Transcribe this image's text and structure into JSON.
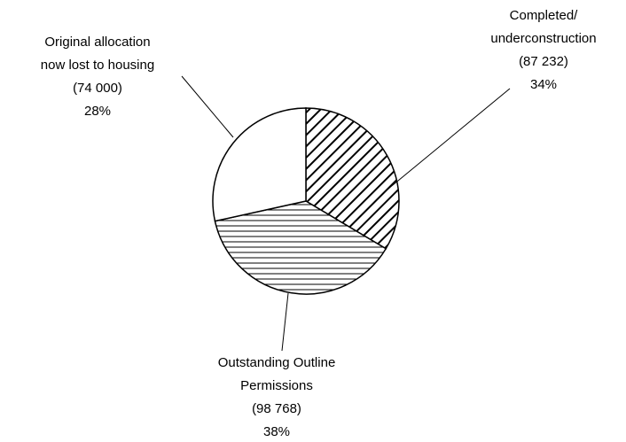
{
  "chart_data": {
    "type": "pie",
    "categories": [
      [
        "Completed/",
        "underconstruction"
      ],
      [
        "Outstanding Outline",
        "Permissions"
      ],
      [
        "Original allocation",
        "now lost to housing"
      ]
    ],
    "values": [
      87232,
      98768,
      74000
    ],
    "value_labels": [
      "(87 232)",
      "(98 768)",
      "(74 000)"
    ],
    "percent_labels": [
      "34%",
      "38%",
      "28%"
    ],
    "patterns": [
      "diagonal",
      "horizontal",
      "none"
    ],
    "color": "#000000"
  }
}
